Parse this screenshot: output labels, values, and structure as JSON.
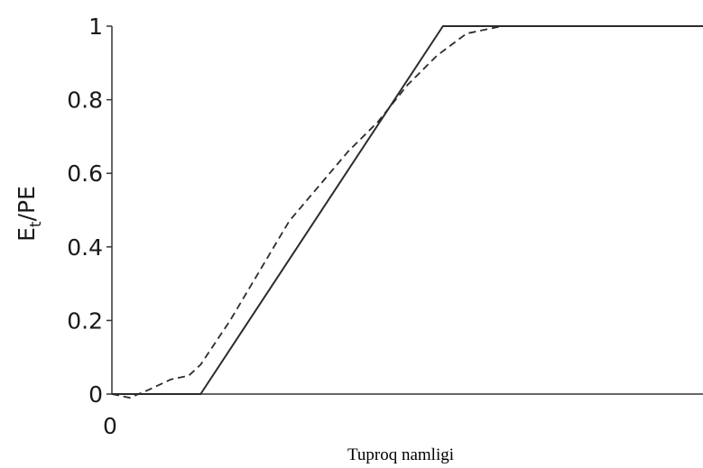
{
  "chart_data": {
    "type": "line",
    "title": "",
    "xlabel": "Tuproq namligi",
    "ylabel_main": "E",
    "ylabel_sub": "t",
    "ylabel_rest": "/PE",
    "x_tick_labels": [
      "0"
    ],
    "y_ticks": [
      0,
      0.2,
      0.4,
      0.6,
      0.8,
      1
    ],
    "y_tick_labels": [
      "0",
      "0.2",
      "0.4",
      "0.6",
      "0.8",
      "1"
    ],
    "xlim": [
      0,
      1
    ],
    "ylim": [
      0,
      1
    ],
    "grid": false,
    "legend": "none",
    "series": [
      {
        "style": "solid",
        "color": "#2b2b2b",
        "x": [
          0,
          0.15,
          0.56,
          1
        ],
        "y": [
          0,
          0,
          1,
          1
        ]
      },
      {
        "style": "dashed",
        "color": "#2b2b2b",
        "x": [
          0,
          0.03,
          0.06,
          0.1,
          0.13,
          0.15,
          0.2,
          0.3,
          0.4,
          0.45,
          0.5,
          0.55,
          0.6,
          0.66,
          0.7,
          1
        ],
        "y": [
          0,
          -0.01,
          0.01,
          0.04,
          0.05,
          0.08,
          0.2,
          0.47,
          0.66,
          0.74,
          0.84,
          0.92,
          0.98,
          1,
          1,
          1
        ]
      }
    ]
  }
}
